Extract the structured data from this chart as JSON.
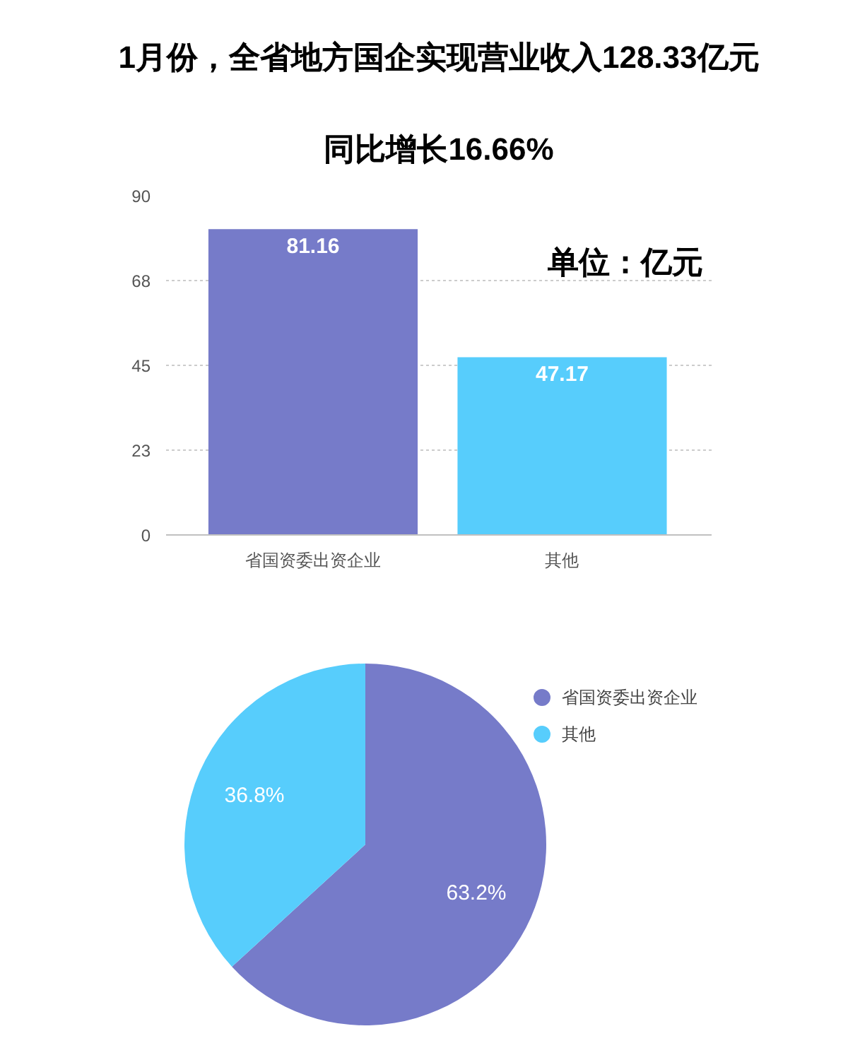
{
  "chart_data": [
    {
      "type": "bar",
      "title": "1月份，全省地方国企实现营业收入128.33亿元",
      "subtitle": "同比增长16.66%",
      "categories": [
        "省国资委出资企业",
        "其他"
      ],
      "values": [
        81.16,
        47.17
      ],
      "colors": [
        "#767bc9",
        "#57cdfc"
      ],
      "ylim": [
        0,
        90
      ],
      "yticks": [
        0,
        {
          "value": 22.5,
          "label": "23"
        },
        45,
        {
          "value": 67.5,
          "label": "68"
        },
        90
      ],
      "grid": "y",
      "data_labels": true,
      "annotations": [
        "单位：亿元"
      ]
    },
    {
      "type": "pie",
      "categories": [
        "省国资委出资企业",
        "其他"
      ],
      "values": [
        63.2,
        36.8
      ],
      "colors": [
        "#767bc9",
        "#57cdfc"
      ],
      "value_labels": [
        "63.2%",
        "36.8%"
      ],
      "legend": "top right"
    }
  ]
}
